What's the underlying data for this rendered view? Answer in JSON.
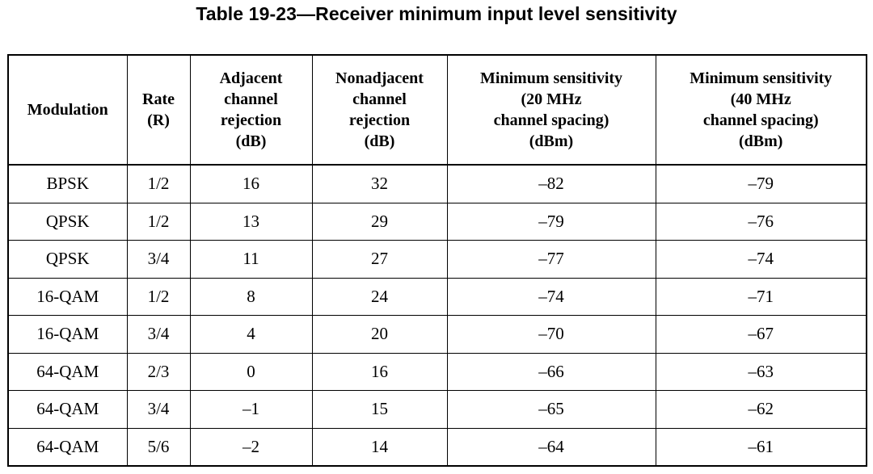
{
  "caption": "Table 19-23—Receiver minimum input level sensitivity",
  "table": {
    "headers": [
      [
        "Modulation"
      ],
      [
        "Rate",
        "(R)"
      ],
      [
        "Adjacent",
        "channel",
        "rejection",
        "(dB)"
      ],
      [
        "Nonadjacent",
        "channel",
        "rejection",
        "(dB)"
      ],
      [
        "Minimum sensitivity",
        "(20 MHz",
        "channel spacing)",
        "(dBm)"
      ],
      [
        "Minimum sensitivity",
        "(40 MHz",
        "channel spacing)",
        "(dBm)"
      ]
    ],
    "rows": [
      [
        "BPSK",
        "1/2",
        "16",
        "32",
        "–82",
        "–79"
      ],
      [
        "QPSK",
        "1/2",
        "13",
        "29",
        "–79",
        "–76"
      ],
      [
        "QPSK",
        "3/4",
        "11",
        "27",
        "–77",
        "–74"
      ],
      [
        "16-QAM",
        "1/2",
        "8",
        "24",
        "–74",
        "–71"
      ],
      [
        "16-QAM",
        "3/4",
        "4",
        "20",
        "–70",
        "–67"
      ],
      [
        "64-QAM",
        "2/3",
        "0",
        "16",
        "–66",
        "–63"
      ],
      [
        "64-QAM",
        "3/4",
        "–1",
        "15",
        "–65",
        "–62"
      ],
      [
        "64-QAM",
        "5/6",
        "–2",
        "14",
        "–64",
        "–61"
      ]
    ]
  }
}
